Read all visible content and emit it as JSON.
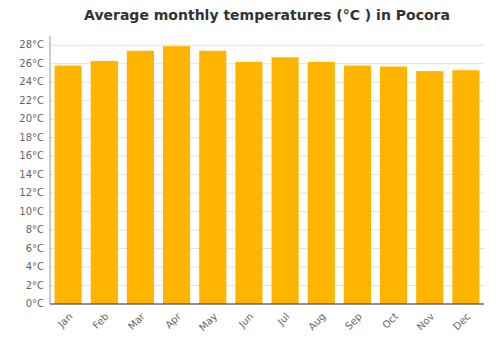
{
  "chart_data": {
    "type": "bar",
    "title": "Average monthly temperatures (°C ) in Pocora",
    "categories": [
      "Jan",
      "Feb",
      "Mar",
      "Apr",
      "May",
      "Jun",
      "Jul",
      "Aug",
      "Sep",
      "Oct",
      "Nov",
      "Dec"
    ],
    "values": [
      25.8,
      26.3,
      27.4,
      27.9,
      27.4,
      26.2,
      26.7,
      26.2,
      25.8,
      25.7,
      25.2,
      25.3
    ],
    "color": "#FFB400",
    "ylim": [
      0,
      29
    ],
    "yticks": [
      {
        "value": 0,
        "label": "0°C"
      },
      {
        "value": 2,
        "label": "2°C"
      },
      {
        "value": 4,
        "label": "4°C"
      },
      {
        "value": 6,
        "label": "6°C"
      },
      {
        "value": 8,
        "label": "8°C"
      },
      {
        "value": 10,
        "label": "10°C"
      },
      {
        "value": 12,
        "label": "12°C"
      },
      {
        "value": 14,
        "label": "14°C"
      },
      {
        "value": 16,
        "label": "16°C"
      },
      {
        "value": 18,
        "label": "18°C"
      },
      {
        "value": 20,
        "label": "20°C"
      },
      {
        "value": 22,
        "label": "22°C"
      },
      {
        "value": 24,
        "label": "24°C"
      },
      {
        "value": 26,
        "label": "26°C"
      },
      {
        "value": 28,
        "label": "28°C"
      }
    ],
    "grid": true
  }
}
